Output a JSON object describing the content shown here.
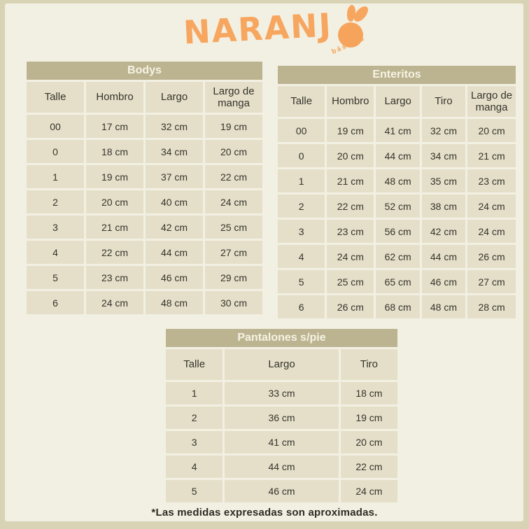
{
  "page": {
    "outer_border_color": "#d9d3b6",
    "panel_color": "#f2f0e2",
    "title_bar_color": "#bcb491",
    "cell_color": "#e5dfc9",
    "accent_orange": "#f7a660",
    "text_color": "#35332c"
  },
  "logo": {
    "text": "NARANJ",
    "sub": "básicos"
  },
  "chart_data": [
    {
      "type": "table",
      "title": "Bodys",
      "columns": [
        "Talle",
        "Hombro",
        "Largo",
        "Largo de manga"
      ],
      "rows": [
        [
          "00",
          "17 cm",
          "32 cm",
          "19 cm"
        ],
        [
          "0",
          "18 cm",
          "34 cm",
          "20 cm"
        ],
        [
          "1",
          "19 cm",
          "37 cm",
          "22 cm"
        ],
        [
          "2",
          "20 cm",
          "40 cm",
          "24 cm"
        ],
        [
          "3",
          "21 cm",
          "42 cm",
          "25 cm"
        ],
        [
          "4",
          "22 cm",
          "44 cm",
          "27 cm"
        ],
        [
          "5",
          "23 cm",
          "46 cm",
          "29 cm"
        ],
        [
          "6",
          "24 cm",
          "48 cm",
          "30 cm"
        ]
      ]
    },
    {
      "type": "table",
      "title": "Enteritos",
      "columns": [
        "Talle",
        "Hombro",
        "Largo",
        "Tiro",
        "Largo de manga"
      ],
      "rows": [
        [
          "00",
          "19 cm",
          "41 cm",
          "32 cm",
          "20 cm"
        ],
        [
          "0",
          "20 cm",
          "44 cm",
          "34 cm",
          "21 cm"
        ],
        [
          "1",
          "21 cm",
          "48 cm",
          "35 cm",
          "23 cm"
        ],
        [
          "2",
          "22 cm",
          "52 cm",
          "38 cm",
          "24 cm"
        ],
        [
          "3",
          "23 cm",
          "56 cm",
          "42 cm",
          "24 cm"
        ],
        [
          "4",
          "24 cm",
          "62 cm",
          "44 cm",
          "26 cm"
        ],
        [
          "5",
          "25 cm",
          "65 cm",
          "46 cm",
          "27 cm"
        ],
        [
          "6",
          "26 cm",
          "68 cm",
          "48 cm",
          "28 cm"
        ]
      ]
    },
    {
      "type": "table",
      "title": "Pantalones s/pie",
      "columns": [
        "Talle",
        "Largo",
        "Tiro"
      ],
      "rows": [
        [
          "1",
          "33 cm",
          "18 cm"
        ],
        [
          "2",
          "36 cm",
          "19 cm"
        ],
        [
          "3",
          "41 cm",
          "20 cm"
        ],
        [
          "4",
          "44 cm",
          "22 cm"
        ],
        [
          "5",
          "46 cm",
          "24 cm"
        ]
      ]
    }
  ],
  "footnote": "*Las medidas expresadas son aproximadas."
}
